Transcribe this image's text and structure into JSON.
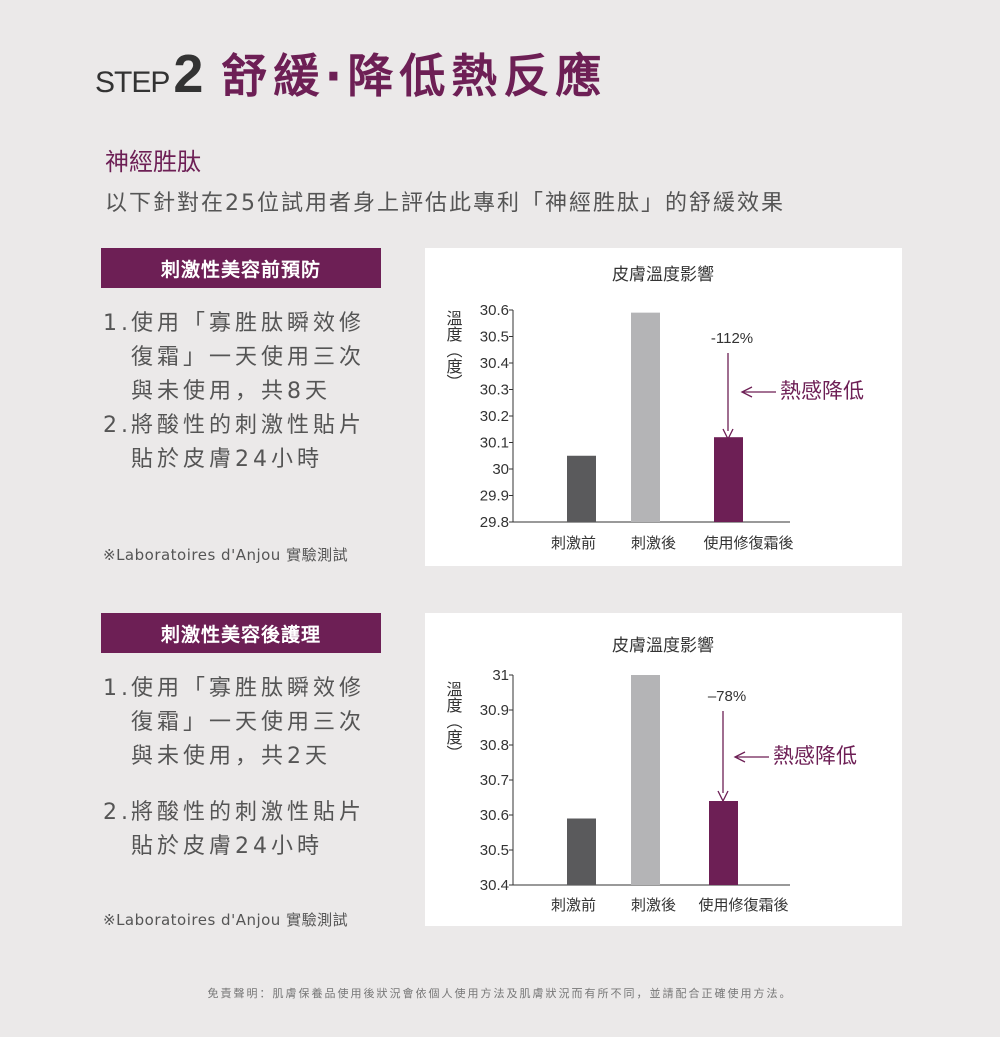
{
  "header": {
    "step_label": "STEP",
    "step_number": "2",
    "headline": "舒緩‧降低熱反應"
  },
  "ingredient": "神經胜肽",
  "intro": "以下針對在25位試用者身上評估此專利「神經胜肽」的舒緩效果",
  "sections": [
    {
      "title": "刺激性美容前預防",
      "steps": [
        {
          "num": "1.",
          "lines": [
            "使用「寡胜肽瞬效修",
            "復霜」一天使用三次",
            "與未使用，共8天"
          ]
        },
        {
          "num": "2.",
          "lines": [
            "將酸性的刺激性貼片",
            "貼於皮膚24小時"
          ]
        }
      ],
      "note": "※Laboratoires d'Anjou 實驗測試"
    },
    {
      "title": "刺激性美容後護理",
      "steps": [
        {
          "num": "1.",
          "lines": [
            "使用「寡胜肽瞬效修",
            "復霜」一天使用三次",
            "與未使用，共2天"
          ]
        },
        {
          "num": "2.",
          "lines": [
            "將酸性的刺激性貼片",
            "貼於皮膚24小時"
          ]
        }
      ],
      "note": "※Laboratoires d'Anjou 實驗測試"
    }
  ],
  "chart_data": [
    {
      "type": "bar",
      "title": "皮膚溫度影響",
      "ylabel": "溫度（度）",
      "categories": [
        "刺激前",
        "刺激後",
        "使用修復霜後"
      ],
      "values": [
        30.05,
        30.59,
        30.12
      ],
      "ylim": [
        29.8,
        30.6
      ],
      "yticks": [
        "30.6",
        "30.5",
        "30.4",
        "30.3",
        "30.2",
        "30.1",
        "30",
        "29.9",
        "29.8"
      ],
      "bar_colors": [
        "#5a5a5c",
        "#b4b4b6",
        "#6d1f55"
      ],
      "annotation_value": "-112%",
      "annotation_label": "熱感降低"
    },
    {
      "type": "bar",
      "title": "皮膚溫度影響",
      "ylabel": "溫度（度）",
      "categories": [
        "刺激前",
        "刺激後",
        "使用修復霜後"
      ],
      "values": [
        30.59,
        31.0,
        30.64
      ],
      "ylim": [
        30.4,
        31.0
      ],
      "yticks": [
        "31",
        "30.9",
        "30.8",
        "30.7",
        "30.6",
        "30.5",
        "30.4"
      ],
      "bar_colors": [
        "#5a5a5c",
        "#b4b4b6",
        "#6d1f55"
      ],
      "annotation_value": "–78%",
      "annotation_label": "熱感降低"
    }
  ],
  "disclaimer": "免責聲明：肌膚保養品使用後狀況會依個人使用方法及肌膚狀況而有所不同，並請配合正確使用方法。"
}
